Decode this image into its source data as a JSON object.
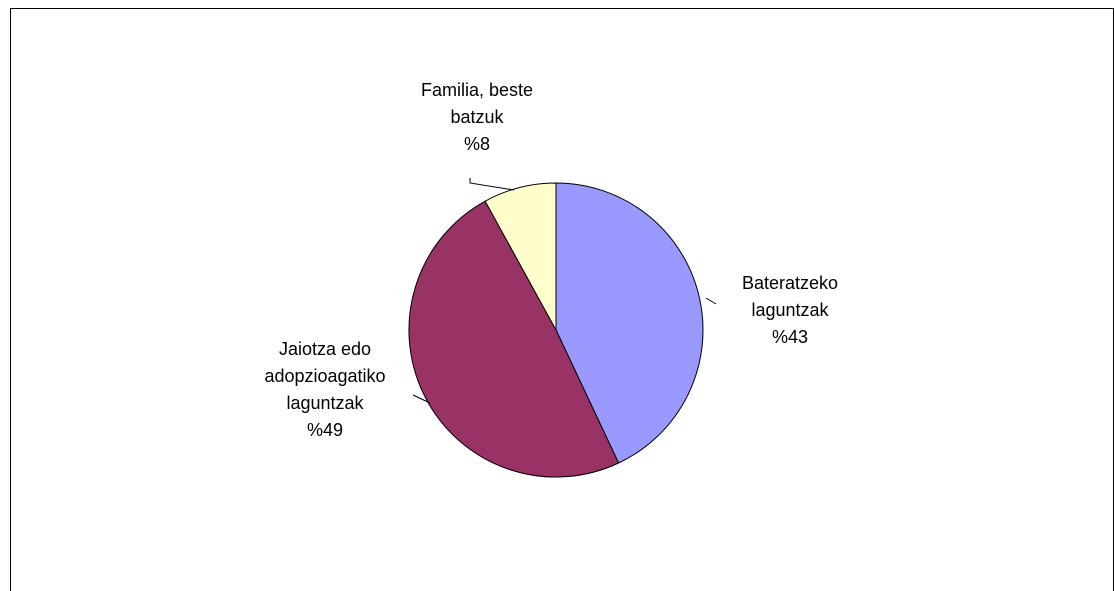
{
  "chart_data": {
    "type": "pie",
    "title": "",
    "slices": [
      {
        "label_lines": [
          "Bateratzeko",
          "laguntzak"
        ],
        "percent_label": "%43",
        "value": 43,
        "color": "#9999ff"
      },
      {
        "label_lines": [
          "Jaiotza edo",
          "adopzioagatiko",
          "laguntzak"
        ],
        "percent_label": "%49",
        "value": 49,
        "color": "#993366"
      },
      {
        "label_lines": [
          "Familia, beste",
          "batzuk"
        ],
        "percent_label": "%8",
        "value": 8,
        "color": "#ffffcc"
      }
    ],
    "legend": "none"
  }
}
